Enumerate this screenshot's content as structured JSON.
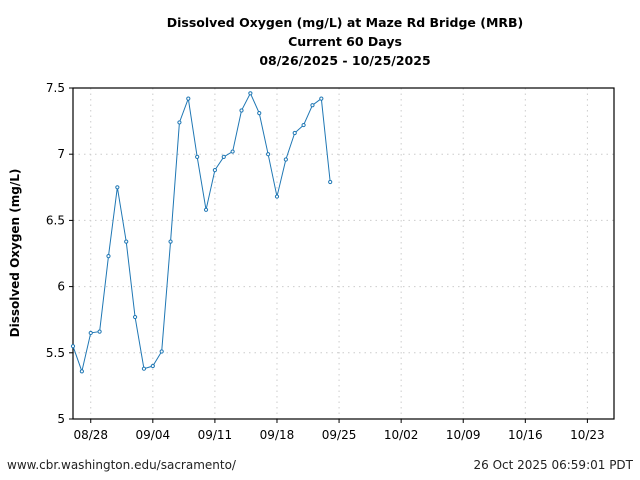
{
  "chart_data": {
    "type": "line",
    "title": "Dissolved Oxygen (mg/L) at Maze Rd Bridge (MRB)",
    "subtitle": "Current 60 Days",
    "date_range": "08/26/2025 - 10/25/2025",
    "xlabel": "",
    "ylabel": "Dissolved Oxygen (mg/L)",
    "ylim": [
      5,
      7.5
    ],
    "xlim_days": [
      0,
      61
    ],
    "x_start": "08/26/2025",
    "grid": true,
    "yticks": [
      {
        "v": 5,
        "l": "5"
      },
      {
        "v": 5.5,
        "l": "5.5"
      },
      {
        "v": 6,
        "l": "6"
      },
      {
        "v": 6.5,
        "l": "6.5"
      },
      {
        "v": 7,
        "l": "7"
      },
      {
        "v": 7.5,
        "l": "7.5"
      }
    ],
    "xticks": [
      {
        "d": 2,
        "l": "08/28"
      },
      {
        "d": 9,
        "l": "09/04"
      },
      {
        "d": 16,
        "l": "09/11"
      },
      {
        "d": 23,
        "l": "09/18"
      },
      {
        "d": 30,
        "l": "09/25"
      },
      {
        "d": 37,
        "l": "10/02"
      },
      {
        "d": 44,
        "l": "10/09"
      },
      {
        "d": 51,
        "l": "10/16"
      },
      {
        "d": 58,
        "l": "10/23"
      }
    ],
    "series": [
      {
        "name": "Dissolved Oxygen",
        "color": "#1f77b4",
        "x_days": [
          0,
          1,
          2,
          3,
          4,
          5,
          6,
          7,
          8,
          9,
          10,
          11,
          12,
          13,
          14,
          15,
          16,
          17,
          18,
          19,
          20,
          21,
          22,
          23,
          24,
          25,
          26,
          27,
          28,
          29
        ],
        "values": [
          5.55,
          5.36,
          5.65,
          5.66,
          6.23,
          6.75,
          6.34,
          5.77,
          5.38,
          5.4,
          5.51,
          6.34,
          7.24,
          7.42,
          6.98,
          6.58,
          6.88,
          6.98,
          7.02,
          7.33,
          7.46,
          7.31,
          7.0,
          6.68,
          6.96,
          7.16,
          7.22,
          7.37,
          7.42,
          6.79
        ]
      }
    ]
  },
  "footer": {
    "url": "www.cbr.washington.edu/sacramento/",
    "timestamp": "26 Oct 2025 06:59:01 PDT"
  }
}
